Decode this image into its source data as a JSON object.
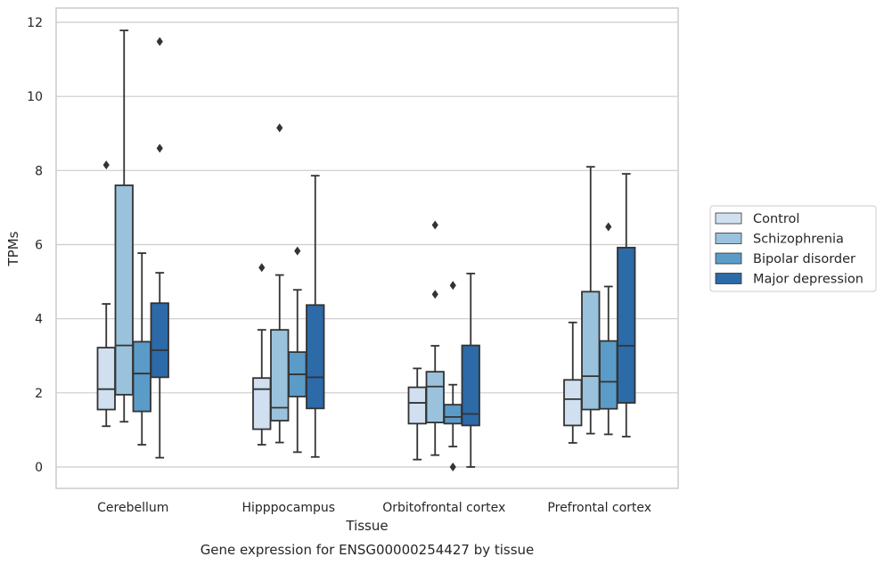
{
  "chart_data": {
    "type": "box",
    "title": "Gene expression for ENSG00000254427 by tissue",
    "xlabel": "Tissue",
    "ylabel": "TPMs",
    "ylim": [
      -0.55,
      12.4
    ],
    "yticks": [
      0,
      2,
      4,
      6,
      8,
      10,
      12
    ],
    "grid": "horizontal",
    "legend_placement": "right",
    "categories": [
      "Cerebellum",
      "Hipppocampus",
      "Orbitofrontal cortex",
      "Prefrontal cortex"
    ],
    "series": [
      {
        "name": "Control",
        "color": "#d0e0f0",
        "boxes": [
          {
            "whisker_low": 1.1,
            "q1": 1.55,
            "median": 2.1,
            "q3": 3.22,
            "whisker_high": 4.4,
            "outliers": [
              8.15
            ]
          },
          {
            "whisker_low": 0.6,
            "q1": 1.02,
            "median": 2.1,
            "q3": 2.4,
            "whisker_high": 3.7,
            "outliers": [
              5.38
            ]
          },
          {
            "whisker_low": 0.2,
            "q1": 1.17,
            "median": 1.73,
            "q3": 2.15,
            "whisker_high": 2.66,
            "outliers": []
          },
          {
            "whisker_low": 0.65,
            "q1": 1.12,
            "median": 1.83,
            "q3": 2.35,
            "whisker_high": 3.9,
            "outliers": []
          }
        ]
      },
      {
        "name": "Schizophrenia",
        "color": "#9ac2dc",
        "boxes": [
          {
            "whisker_low": 1.22,
            "q1": 1.95,
            "median": 3.28,
            "q3": 7.6,
            "whisker_high": 11.78,
            "outliers": []
          },
          {
            "whisker_low": 0.66,
            "q1": 1.25,
            "median": 1.6,
            "q3": 3.7,
            "whisker_high": 5.18,
            "outliers": [
              9.15
            ]
          },
          {
            "whisker_low": 0.32,
            "q1": 1.2,
            "median": 2.17,
            "q3": 2.57,
            "whisker_high": 3.27,
            "outliers": [
              6.53,
              4.66
            ]
          },
          {
            "whisker_low": 0.9,
            "q1": 1.55,
            "median": 2.45,
            "q3": 4.73,
            "whisker_high": 8.1,
            "outliers": []
          }
        ]
      },
      {
        "name": "Bipolar disorder",
        "color": "#5b9bc8",
        "boxes": [
          {
            "whisker_low": 0.6,
            "q1": 1.5,
            "median": 2.52,
            "q3": 3.38,
            "whisker_high": 5.77,
            "outliers": []
          },
          {
            "whisker_low": 0.4,
            "q1": 1.9,
            "median": 2.5,
            "q3": 3.1,
            "whisker_high": 4.78,
            "outliers": [
              5.83
            ]
          },
          {
            "whisker_low": 0.55,
            "q1": 1.17,
            "median": 1.35,
            "q3": 1.68,
            "whisker_high": 2.22,
            "outliers": [
              4.9,
              0.0
            ]
          },
          {
            "whisker_low": 0.88,
            "q1": 1.57,
            "median": 2.3,
            "q3": 3.4,
            "whisker_high": 4.87,
            "outliers": [
              6.48
            ]
          }
        ]
      },
      {
        "name": "Major depression",
        "color": "#2c6aa8",
        "boxes": [
          {
            "whisker_low": 0.25,
            "q1": 2.42,
            "median": 3.15,
            "q3": 4.42,
            "whisker_high": 5.24,
            "outliers": [
              11.48,
              8.6
            ]
          },
          {
            "whisker_low": 0.27,
            "q1": 1.58,
            "median": 2.42,
            "q3": 4.37,
            "whisker_high": 7.86,
            "outliers": []
          },
          {
            "whisker_low": 0.0,
            "q1": 1.12,
            "median": 1.43,
            "q3": 3.28,
            "whisker_high": 5.22,
            "outliers": []
          },
          {
            "whisker_low": 0.82,
            "q1": 1.73,
            "median": 3.27,
            "q3": 5.92,
            "whisker_high": 7.91,
            "outliers": []
          }
        ]
      }
    ]
  }
}
